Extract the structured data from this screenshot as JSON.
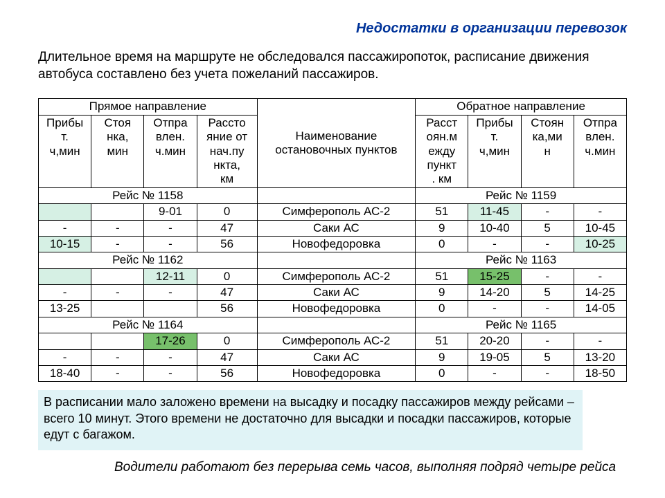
{
  "title": "Недостатки в организации перевозок",
  "lead": "Длительное время на маршруте не обследовался пассажиропоток, расписание движения автобуса составлено без учета пожеланий пассажиров.",
  "headers": {
    "fwd_group": "Прямое направление",
    "stops_group": "Наименование остановочных пунктов",
    "back_group": "Обратное направление",
    "fwd_arrive": "Прибы\nт.\nч,мин",
    "fwd_stop": "Стоя\nнка,\nмин",
    "fwd_depart": "Отпра\nвлен.\nч.мин",
    "fwd_dist": "Рассто\nяние от\nнач.пу\nнкта,\nкм",
    "back_dist": "Расст\nоян.м\nежду\nпункт\n. км",
    "back_arrive": "Прибы\nт.\nч,мин",
    "back_stop": "Стоян\nка,ми\nн",
    "back_depart": "Отпра\nвлен.\nч.мин"
  },
  "sections": [
    {
      "fwd_label": "Рейс № 1158",
      "back_label": "Рейс № 1159",
      "rows": [
        {
          "a": "",
          "b": "",
          "c": "9-01",
          "d": "0",
          "e": "Симферополь АС-2",
          "f": "51",
          "g": "11-45",
          "h": "-",
          "i": "-",
          "hl_a": "light",
          "hl_g": "light"
        },
        {
          "a": "-",
          "b": "-",
          "c": "-",
          "d": "47",
          "e": "Саки АС",
          "f": "9",
          "g": "10-40",
          "h": "5",
          "i": "10-45"
        },
        {
          "a": "10-15",
          "b": "-",
          "c": "-",
          "d": "56",
          "e": "Новофедоровка",
          "f": "0",
          "g": "-",
          "h": "-",
          "i": "10-25",
          "hl_a": "light",
          "hl_i": "light"
        }
      ]
    },
    {
      "fwd_label": "Рейс № 1162",
      "back_label": "Рейс № 1163",
      "rows": [
        {
          "a": "",
          "b": "",
          "c": "12-11",
          "d": "0",
          "e": "Симферополь АС-2",
          "f": "51",
          "g": "15-25",
          "h": "-",
          "i": "-",
          "hl_a": "light",
          "hl_c": "light",
          "hl_g": "green"
        },
        {
          "a": "-",
          "b": "-",
          "c": "-",
          "d": "47",
          "e": "Саки АС",
          "f": "9",
          "g": "14-20",
          "h": "5",
          "i": "14-25"
        },
        {
          "a": "13-25",
          "b": "",
          "c": "",
          "d": "56",
          "e": "Новофедоровка",
          "f": "0",
          "g": "-",
          "h": "-",
          "i": "14-05"
        }
      ]
    },
    {
      "fwd_label": "Рейс № 1164",
      "back_label": "Рейс № 1165",
      "rows": [
        {
          "a": "",
          "b": "",
          "c": "17-26",
          "d": "0",
          "e": "Симферополь АС-2",
          "f": "51",
          "g": "20-20",
          "h": "-",
          "i": "-",
          "hl_c": "green"
        },
        {
          "a": "-",
          "b": "-",
          "c": "-",
          "d": "47",
          "e": "Саки АС",
          "f": "9",
          "g": "19-05",
          "h": "5",
          "i": "13-20"
        },
        {
          "a": "18-40",
          "b": "-",
          "c": "-",
          "d": "56",
          "e": "Новофедоровка",
          "f": "0",
          "g": "-",
          "h": "-",
          "i": "18-50"
        }
      ]
    }
  ],
  "note": "В расписании мало заложено времени на высадку и посадку пассажиров между рейсами – всего 10 минут. Этого времени не достаточно для высадки и посадки пассажиров, которые едут  с багажом.",
  "footer": "Водители работают без перерыва семь часов, выполняя подряд четыре рейса",
  "colors": {
    "title": "#003399",
    "highlight_light": "#d6f0e4",
    "highlight_green": "#77c06b",
    "note_bg": "#e0f3f6",
    "border": "#000000",
    "page_bg": "#ffffff"
  }
}
